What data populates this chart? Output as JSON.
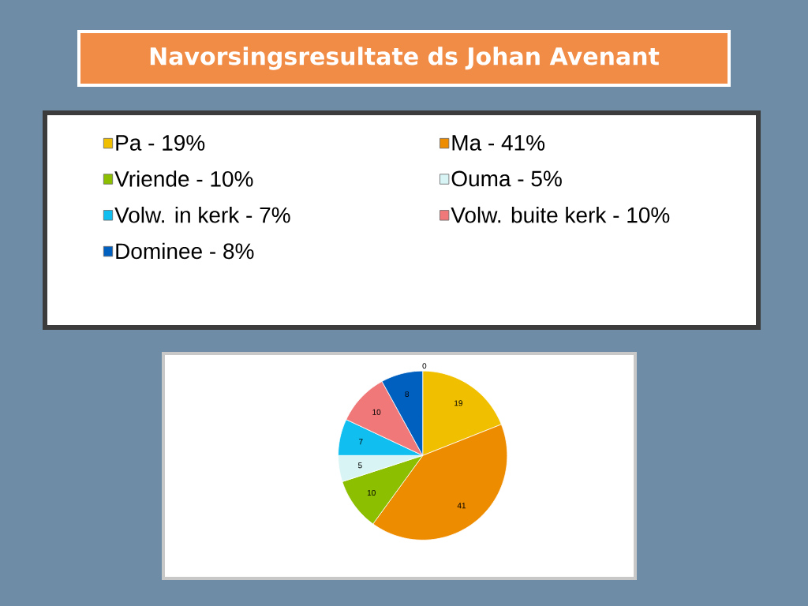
{
  "chart_data": {
    "type": "pie",
    "title": "Navorsingsresultate ds Johan Avenant",
    "categories": [
      "Pa  -  19%",
      "Ma  -  41%",
      "Vriende  -  10%",
      "Ouma  -  5%",
      "Volw. in kerk  -  7%",
      "Volw. buite kerk  -  10%",
      "Dominee  -  8%"
    ],
    "values": [
      19,
      41,
      10,
      5,
      7,
      10,
      8
    ],
    "colors": [
      "#f0c000",
      "#ee8c00",
      "#8cbf00",
      "#d8f4f4",
      "#10bff0",
      "#f07878",
      "#0060c0"
    ],
    "data_labels": true,
    "legend": "top",
    "annotations": [
      "0"
    ]
  }
}
